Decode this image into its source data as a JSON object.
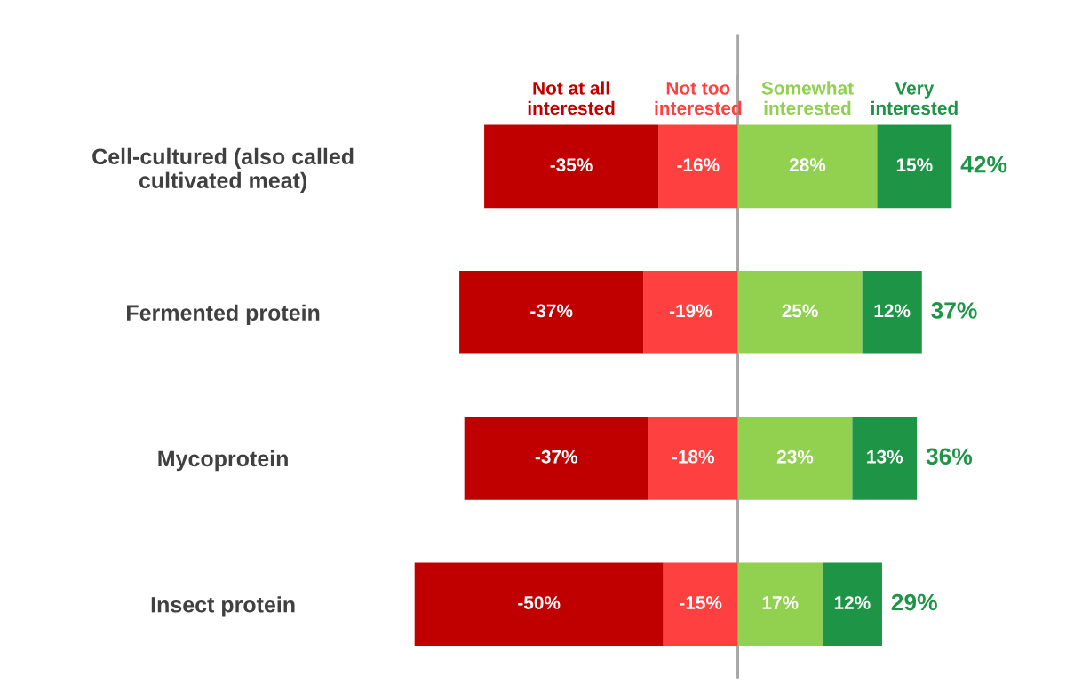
{
  "chart_data": {
    "type": "bar",
    "orientation": "horizontal",
    "stacked": true,
    "legend": "top",
    "categories": [
      "Cell-cultured (also called\ncultivated meat)",
      "Fermented protein",
      "Mycoprotein",
      "Insect protein"
    ],
    "series": [
      {
        "name": "Not too\ninterested",
        "color": "#ff4040",
        "values": [
          -16,
          -19,
          -18,
          -15
        ],
        "value_labels": [
          "-16%",
          "-19%",
          "-18%",
          "-15%"
        ]
      },
      {
        "name": "Not at all\ninterested",
        "color": "#c00000",
        "values": [
          -35,
          -37,
          -37,
          -50
        ],
        "value_labels": [
          "-35%",
          "-37%",
          "-37%",
          "-50%"
        ]
      },
      {
        "name": "Somewhat\ninterested",
        "color": "#92d050",
        "values": [
          28,
          25,
          23,
          17
        ],
        "value_labels": [
          "28%",
          "25%",
          "23%",
          "17%"
        ]
      },
      {
        "name": "Very\ninterested",
        "color": "#1e9447",
        "values": [
          15,
          12,
          13,
          12
        ],
        "value_labels": [
          "15%",
          "12%",
          "13%",
          "12%"
        ]
      }
    ],
    "annotations": [
      {
        "text": "42%",
        "x": 43,
        "y": "Cell-cultured (also called\ncultivated meat)"
      },
      {
        "text": "37%",
        "x": 37,
        "y": "Fermented protein"
      },
      {
        "text": "36%",
        "x": 36,
        "y": "Mycoprotein"
      },
      {
        "text": "29%",
        "x": 29,
        "y": "Insect protein"
      }
    ],
    "ref_lines": [
      {
        "axis": "x",
        "value": 0,
        "color": "#a6a6a6"
      }
    ]
  }
}
